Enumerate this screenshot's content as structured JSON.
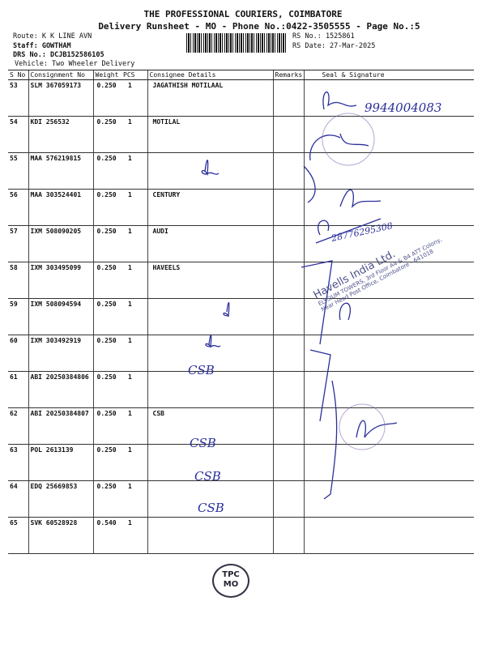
{
  "header": {
    "title": "THE PROFESSIONAL COURIERS, COIMBATORE",
    "subtitle": "Delivery Runsheet - MO - Phone No.:0422-3505555 - Page No.:5",
    "route": "Route: K K LINE AVN",
    "staff": "Staff: GOWTHAM",
    "drs": "DRS No.: DCJB152586105",
    "vehicle": "Vehicle: Two Wheeler Delivery",
    "rs_no": "RS No.: 1525861",
    "rs_date": "RS Date: 27-Mar-2025"
  },
  "table": {
    "columns": [
      "S No",
      "Consignment No",
      "Weight",
      "PCS",
      "Consignee Details",
      "Remarks",
      "Seal & Signature"
    ],
    "rows": [
      {
        "sno": "53",
        "cn": "SLM 367059173",
        "wt": "0.250",
        "pcs": "1",
        "consignee": "JAGATHISH MOTILAAL"
      },
      {
        "sno": "54",
        "cn": "KDI 256532",
        "wt": "0.250",
        "pcs": "1",
        "consignee": "MOTILAL"
      },
      {
        "sno": "55",
        "cn": "MAA 576219815",
        "wt": "0.250",
        "pcs": "1",
        "consignee": ""
      },
      {
        "sno": "56",
        "cn": "MAA 303524401",
        "wt": "0.250",
        "pcs": "1",
        "consignee": "CENTURY"
      },
      {
        "sno": "57",
        "cn": "IXM 508090205",
        "wt": "0.250",
        "pcs": "1",
        "consignee": "AUDI"
      },
      {
        "sno": "58",
        "cn": "IXM 303495099",
        "wt": "0.250",
        "pcs": "1",
        "consignee": "HAVEELS"
      },
      {
        "sno": "59",
        "cn": "IXM 508094594",
        "wt": "0.250",
        "pcs": "1",
        "consignee": ""
      },
      {
        "sno": "60",
        "cn": "IXM 303492919",
        "wt": "0.250",
        "pcs": "1",
        "consignee": ""
      },
      {
        "sno": "61",
        "cn": "ABI 20250384806",
        "wt": "0.250",
        "pcs": "1",
        "consignee": ""
      },
      {
        "sno": "62",
        "cn": "ABI 20250384807",
        "wt": "0.250",
        "pcs": "1",
        "consignee": "CSB"
      },
      {
        "sno": "63",
        "cn": "POL 2613139",
        "wt": "0.250",
        "pcs": "1",
        "consignee": ""
      },
      {
        "sno": "64",
        "cn": "EDQ 25669853",
        "wt": "0.250",
        "pcs": "1",
        "consignee": ""
      },
      {
        "sno": "65",
        "cn": "SVK 60528928",
        "wt": "0.540",
        "pcs": "1",
        "consignee": ""
      }
    ]
  },
  "handwriting": {
    "phone_1": "9944004083",
    "phone_2": "28776295308",
    "initials": [
      "CSB",
      "CSB",
      "CSB",
      "CSB"
    ]
  },
  "stamps": {
    "tpc": {
      "line1": "TPC",
      "line2": "MO"
    },
    "havells": {
      "name": "Havells India Ltd.",
      "address": "ELYSIUM TOWERS, 3rd Floor A4 & B4 ATT Colony, Near Head Post Office, Coimbatore - 641018"
    }
  },
  "colors": {
    "ink": "#2a2f9a",
    "stamp": "#7a5cae",
    "text": "#111111"
  }
}
